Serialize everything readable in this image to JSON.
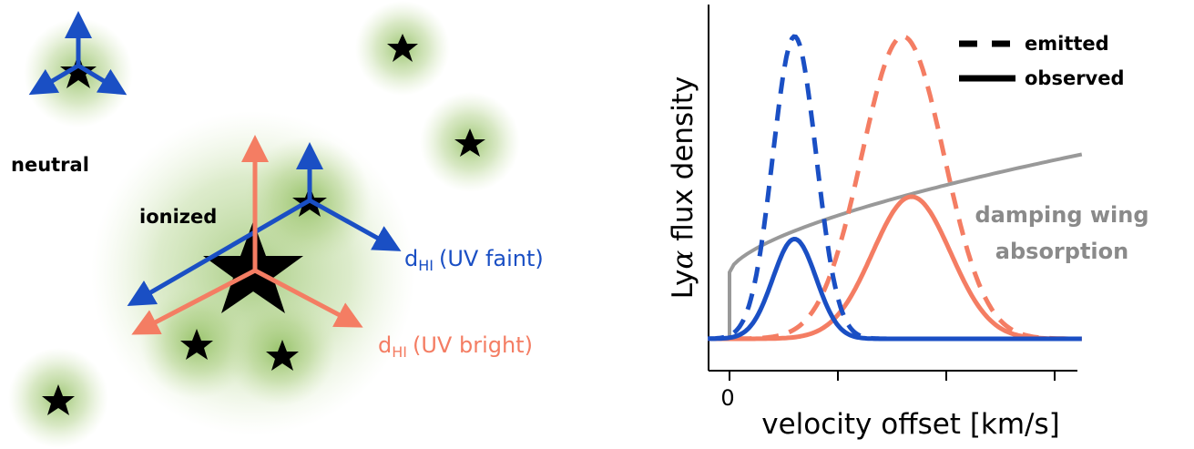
{
  "diagram": {
    "region_labels": {
      "neutral": "neutral",
      "ionized": "ionized"
    },
    "distance_labels": {
      "symbol": "d",
      "subscript": "HI",
      "faint": "(UV faint)",
      "bright": "(UV bright)"
    },
    "colors": {
      "blue": "#1a4fc4",
      "salmon": "#f47d63",
      "halo": "#8cbc5a",
      "star": "#000000"
    }
  },
  "chart_data": {
    "type": "line",
    "ylabel_prefix": "Ly",
    "ylabel_alpha": "α",
    "ylabel_suffix": " flux density",
    "xlabel": "velocity offset [km/s]",
    "x_tick_labels": [
      "0"
    ],
    "x_range": [
      -0.2,
      3.25
    ],
    "y_range": [
      0,
      1.0
    ],
    "legend": {
      "emitted": "emitted",
      "observed": "observed",
      "placement": "top-right"
    },
    "annotation": [
      "damping wing",
      "absorption"
    ],
    "series": [
      {
        "name": "emitted",
        "color": "#1a4fc4",
        "style": "dashed",
        "center": 0.6,
        "sigma": 0.2,
        "peak": 1.0
      },
      {
        "name": "observed",
        "color": "#1a4fc4",
        "style": "solid",
        "center": 0.6,
        "sigma": 0.2,
        "peak": 0.33
      },
      {
        "name": "emitted",
        "color": "#f47d63",
        "style": "dashed",
        "center": 1.6,
        "sigma": 0.38,
        "peak": 1.0
      },
      {
        "name": "observed",
        "color": "#f47d63",
        "style": "solid",
        "center": 1.68,
        "sigma": 0.36,
        "peak": 0.47
      },
      {
        "name": "damping wing",
        "color": "#999999",
        "style": "solid",
        "onset": 0.0,
        "start_level": 0.22,
        "end_level": 0.61
      }
    ]
  }
}
